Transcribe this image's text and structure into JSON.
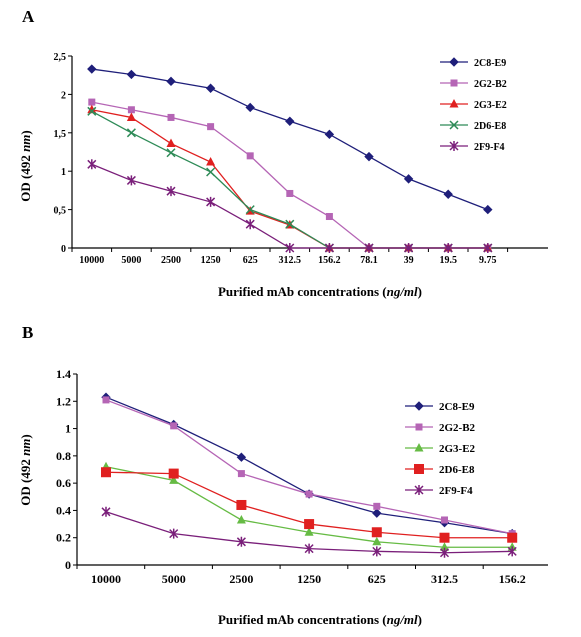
{
  "chart_data": [
    {
      "panel": "A",
      "type": "line",
      "xlabel_prefix": "Purified mAb concentrations (",
      "xlabel_unit": "ng/ml",
      "xlabel_suffix": ")",
      "ylabel_prefix": "OD (492 ",
      "ylabel_unit": "nm",
      "ylabel_suffix": ")",
      "ylim": [
        0,
        2.5
      ],
      "yticks": [
        "0",
        "0,5",
        "1",
        "1,5",
        "2",
        "2,5"
      ],
      "ytick_values": [
        0,
        0.5,
        1,
        1.5,
        2,
        2.5
      ],
      "categories": [
        "10000",
        "5000",
        "2500",
        "1250",
        "625",
        "312.5",
        "156.2",
        "78.1",
        "39",
        "19.5",
        "9.75"
      ],
      "legend_position": "right",
      "series": [
        {
          "name": "2C8-E9",
          "color": "#1f1f7a",
          "marker": "diamond",
          "values": [
            2.33,
            2.26,
            2.17,
            2.08,
            1.83,
            1.65,
            1.48,
            1.19,
            0.9,
            0.7,
            0.5
          ]
        },
        {
          "name": "2G2-B2",
          "color": "#b565b5",
          "marker": "square",
          "values": [
            1.9,
            1.8,
            1.7,
            1.58,
            1.2,
            0.71,
            0.41,
            0.0,
            0.0,
            0.0,
            0.0
          ]
        },
        {
          "name": "2G3-E2",
          "color": "#e02020",
          "marker": "triangle",
          "values": [
            1.8,
            1.7,
            1.36,
            1.12,
            0.48,
            0.3,
            0.0,
            0.0,
            0.0,
            0.0,
            0.0
          ]
        },
        {
          "name": "2D6-E8",
          "color": "#2e8b57",
          "marker": "x",
          "values": [
            1.78,
            1.5,
            1.24,
            0.99,
            0.5,
            0.31,
            0.0,
            0.0,
            0.0,
            0.0,
            0.0
          ]
        },
        {
          "name": "2F9-F4",
          "color": "#7a1f7a",
          "marker": "star",
          "values": [
            1.09,
            0.88,
            0.74,
            0.6,
            0.31,
            0.0,
            0.0,
            0.0,
            0.0,
            0.0,
            0.0
          ]
        }
      ]
    },
    {
      "panel": "B",
      "type": "line",
      "xlabel_prefix": "Purified mAb concentrations (",
      "xlabel_unit": "ng/ml",
      "xlabel_suffix": ")",
      "ylabel_prefix": "OD (492 ",
      "ylabel_unit": "nm",
      "ylabel_suffix": ")",
      "ylim": [
        0,
        1.4
      ],
      "yticks": [
        "0",
        "0.2",
        "0.4",
        "0.6",
        "0.8",
        "1",
        "1.2",
        "1.4"
      ],
      "ytick_values": [
        0,
        0.2,
        0.4,
        0.6,
        0.8,
        1.0,
        1.2,
        1.4
      ],
      "categories": [
        "10000",
        "5000",
        "2500",
        "1250",
        "625",
        "312.5",
        "156.2"
      ],
      "legend_position": "right",
      "series": [
        {
          "name": "2C8-E9",
          "color": "#1f1f7a",
          "marker": "diamond",
          "values": [
            1.23,
            1.03,
            0.79,
            0.52,
            0.38,
            0.31,
            0.23
          ]
        },
        {
          "name": "2G2-B2",
          "color": "#b565b5",
          "marker": "square",
          "values": [
            1.21,
            1.02,
            0.67,
            0.52,
            0.43,
            0.33,
            0.23
          ]
        },
        {
          "name": "2G3-E2",
          "color": "#66bb44",
          "marker": "triangle",
          "values": [
            0.72,
            0.62,
            0.33,
            0.24,
            0.17,
            0.13,
            0.13
          ]
        },
        {
          "name": "2D6-E8",
          "color": "#e02020",
          "marker": "bigsquare",
          "values": [
            0.68,
            0.67,
            0.44,
            0.3,
            0.24,
            0.2,
            0.2
          ]
        },
        {
          "name": "2F9-F4",
          "color": "#7a1f7a",
          "marker": "star",
          "values": [
            0.39,
            0.23,
            0.17,
            0.12,
            0.1,
            0.09,
            0.1
          ]
        }
      ]
    }
  ]
}
